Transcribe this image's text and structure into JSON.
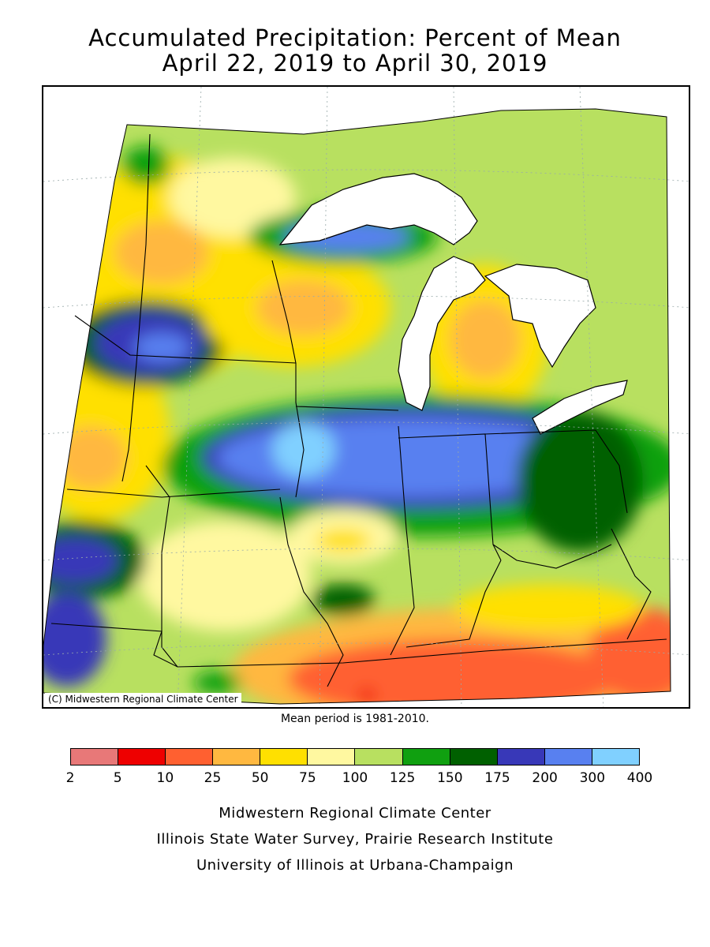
{
  "title_line1": "Accumulated Precipitation: Percent of Mean",
  "title_line2": "April 22, 2019 to April 30, 2019",
  "copyright": "(C) Midwestern Regional Climate Center",
  "mean_period": "Mean period is 1981-2010.",
  "legend": {
    "ticks": [
      "2",
      "5",
      "10",
      "25",
      "50",
      "75",
      "100",
      "125",
      "150",
      "175",
      "200",
      "300",
      "400"
    ],
    "colors": [
      "#e87878",
      "#ee0000",
      "#ff6030",
      "#ffb840",
      "#ffe000",
      "#fff8a0",
      "#b8e060",
      "#10a010",
      "#006000",
      "#3838b8",
      "#5880f0",
      "#80d0ff"
    ]
  },
  "footer": [
    "Midwestern Regional Climate Center",
    "Illinois State Water Survey, Prairie Research Institute",
    "University of Illinois at Urbana-Champaign"
  ]
}
